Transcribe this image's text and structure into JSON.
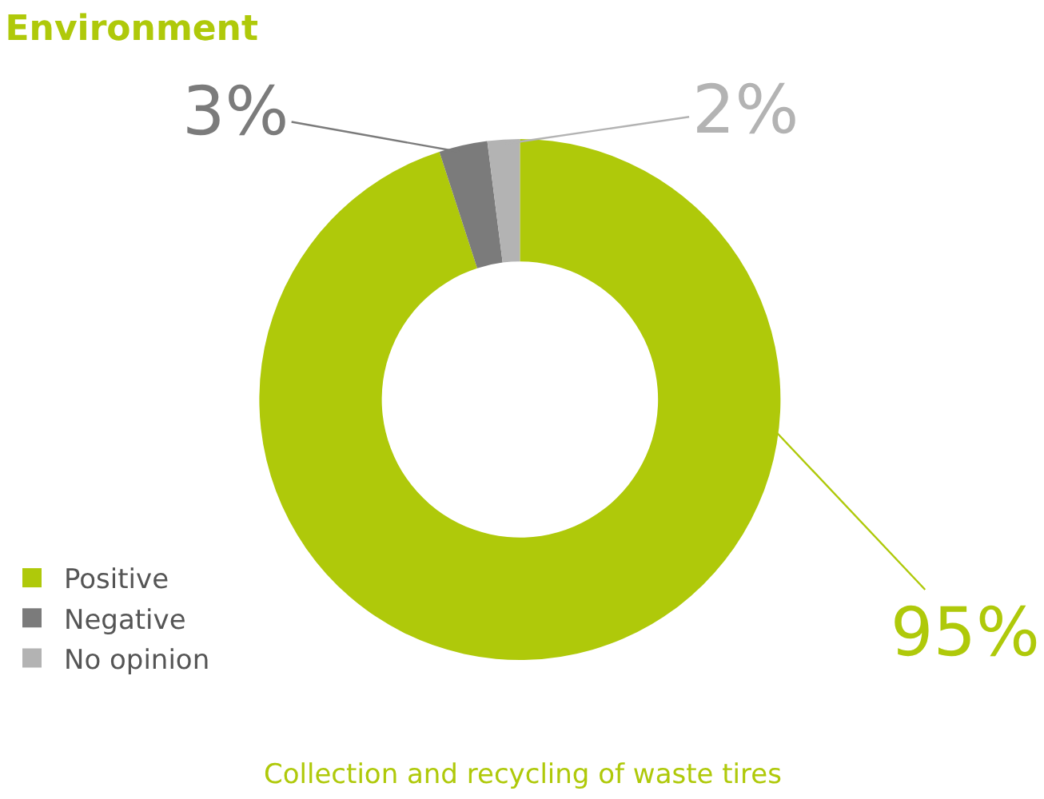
{
  "chart_data": {
    "type": "donut",
    "title": "Environment",
    "categories": [
      "Positive",
      "Negative",
      "No opinion"
    ],
    "values": [
      95,
      3,
      2
    ],
    "colors": [
      "#afc90a",
      "#7b7b7b",
      "#b3b3b3"
    ],
    "value_labels": [
      "95%",
      "3%",
      "2%"
    ],
    "legend": "bottom left",
    "annotations": [
      "Collection and recycling of waste tires"
    ]
  }
}
